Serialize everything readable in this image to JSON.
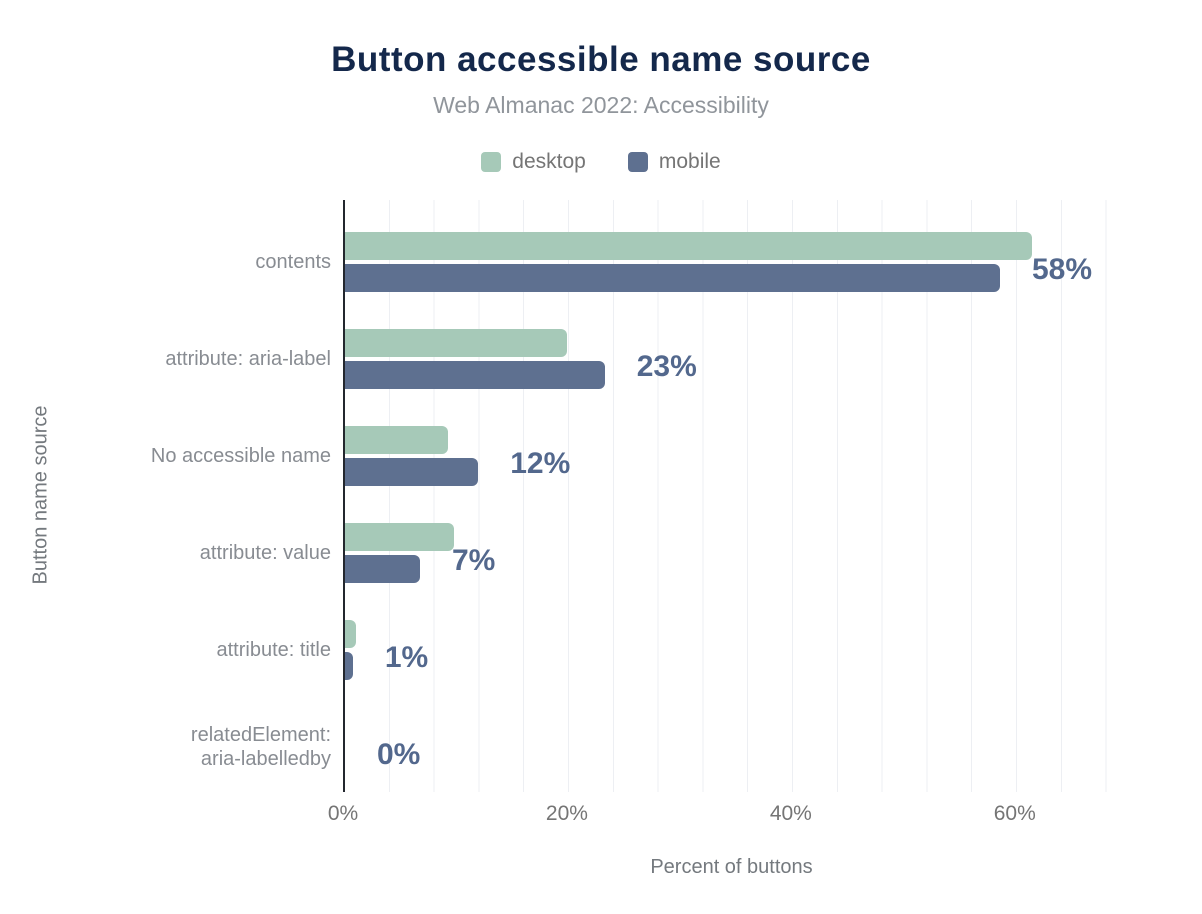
{
  "title": "Button accessible name source",
  "subtitle": "Web Almanac 2022: Accessibility",
  "legend": {
    "items": [
      {
        "label": "desktop",
        "color": "#a6c9b8"
      },
      {
        "label": "mobile",
        "color": "#5e7090"
      }
    ]
  },
  "chart_data": {
    "type": "bar",
    "orientation": "horizontal",
    "title": "Button accessible name source",
    "subtitle": "Web Almanac 2022: Accessibility",
    "xlabel": "Percent of buttons",
    "ylabel": "Button name source",
    "xlim": [
      0,
      69.4
    ],
    "grid": "vertical minor gridlines every 4%, dark axis line at 0",
    "legend_position": "top",
    "x_ticks": [
      {
        "value": 0,
        "label": "0%"
      },
      {
        "value": 20,
        "label": "20%"
      },
      {
        "value": 40,
        "label": "40%"
      },
      {
        "value": 60,
        "label": "60%"
      }
    ],
    "categories": [
      "contents",
      "attribute: aria-label",
      "No accessible name",
      "attribute: value",
      "attribute: title",
      "relatedElement:\naria-labelledby"
    ],
    "series": [
      {
        "name": "desktop",
        "color": "#a6c9b8",
        "values": [
          61.4,
          19.8,
          9.2,
          9.7,
          1.0,
          0
        ]
      },
      {
        "name": "mobile",
        "color": "#5e7090",
        "values": [
          58.5,
          23.2,
          11.9,
          6.7,
          0.7,
          0
        ]
      }
    ],
    "value_labels": [
      "58%",
      "23%",
      "12%",
      "7%",
      "1%",
      "0%"
    ],
    "value_labels_note": "labels show mobile values rounded to whole percent"
  },
  "colors": {
    "background": "#ffffff",
    "title": "#14284b",
    "subtitle": "#90959b",
    "category_label": "#888c92",
    "value_label": "#53688d",
    "tick_label": "#757575",
    "axis_title": "#74797e",
    "gridline": "#edeff3",
    "axis_line": "#23272e",
    "desktop_bar": "#a6c9b8",
    "mobile_bar": "#5e7090"
  }
}
